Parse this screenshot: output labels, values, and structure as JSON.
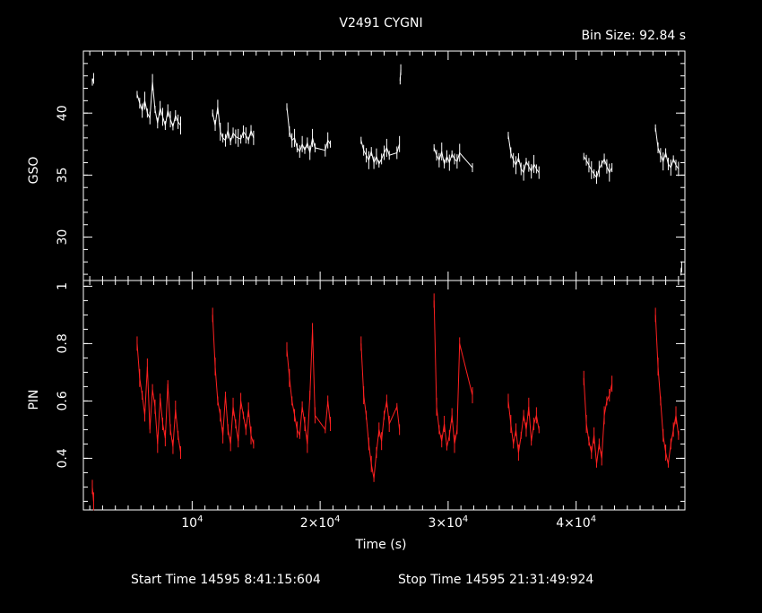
{
  "title": "V2491 CYGNI",
  "bin_label": "Bin Size: 92.84 s",
  "footer": {
    "start": "Start Time 14595  8:41:15:604",
    "stop": "Stop Time 14595 21:31:49:924"
  },
  "colors": {
    "background": "#000000",
    "gso": "#ffffff",
    "pin": "#ff2020",
    "axes": "#ffffff"
  },
  "chart_data": [
    {
      "type": "line",
      "ylabel": "GSO",
      "xlim": [
        1500,
        48500
      ],
      "ylim": [
        26.5,
        45
      ],
      "yticks": [
        30,
        35,
        40
      ],
      "grid": false,
      "series": [
        {
          "segments": [
            {
              "x": [
                2200,
                2300
              ],
              "y": [
                42.5,
                42.8
              ]
            },
            {
              "x": [
                5700,
                5900,
                6100,
                6300,
                6500,
                6700,
                6900,
                7100,
                7300,
                7500,
                7700,
                7900,
                8100,
                8300,
                8500,
                8700,
                8900,
                9100
              ],
              "y": [
                41.5,
                40.8,
                40.2,
                41.0,
                40.0,
                39.6,
                42.5,
                40.3,
                39.2,
                40.4,
                39.7,
                39.0,
                40.2,
                39.5,
                38.9,
                39.8,
                39.3,
                39.0
              ]
            },
            {
              "x": [
                11600,
                11800,
                12000,
                12200,
                12400,
                12600,
                12800,
                13000,
                13200,
                13400,
                13600,
                13800,
                14000,
                14200,
                14400,
                14600,
                14800
              ],
              "y": [
                40.0,
                39.0,
                40.5,
                38.5,
                38.0,
                37.8,
                38.6,
                37.7,
                38.4,
                38.1,
                38.0,
                37.9,
                38.5,
                38.2,
                37.8,
                38.6,
                38.0
              ]
            },
            {
              "x": [
                17400,
                17600,
                17800,
                18000,
                18200,
                18400,
                18600,
                18800,
                19000,
                19200,
                19400,
                19600,
                20400,
                20600,
                20800
              ],
              "y": [
                40.5,
                38.5,
                37.8,
                38.0,
                37.2,
                36.9,
                37.5,
                37.0,
                37.6,
                36.8,
                38.0,
                37.2,
                37.0,
                37.8,
                37.5
              ]
            },
            {
              "x": [
                23200,
                23400,
                23600,
                23800,
                24000,
                24200,
                24400,
                24600,
                24800,
                25000,
                25200,
                25400,
                26000,
                26200
              ],
              "y": [
                37.8,
                37.0,
                36.6,
                36.2,
                36.9,
                36.0,
                36.5,
                35.9,
                36.3,
                36.8,
                37.2,
                36.6,
                36.8,
                37.5
              ]
            },
            {
              "x": [
                26250,
                26300
              ],
              "y": [
                42.6,
                43.5
              ]
            },
            {
              "x": [
                28900,
                29100,
                29300,
                29500,
                29700,
                29900,
                30100,
                30300,
                30500,
                30700,
                30900,
                31900
              ],
              "y": [
                37.2,
                36.6,
                36.2,
                36.9,
                35.9,
                36.5,
                36.0,
                36.7,
                36.3,
                36.1,
                36.8,
                35.6
              ]
            },
            {
              "x": [
                34700,
                34900,
                35100,
                35300,
                35500,
                35700,
                35900,
                36100,
                36300,
                36500,
                36700,
                36900,
                37100
              ],
              "y": [
                38.2,
                36.8,
                36.2,
                35.8,
                36.4,
                35.5,
                35.2,
                36.1,
                35.7,
                35.3,
                35.9,
                35.5,
                35.2
              ]
            },
            {
              "x": [
                40600,
                40800,
                41000,
                41200,
                41400,
                41600,
                41800,
                42000,
                42200,
                42400,
                42600,
                42800
              ],
              "y": [
                36.5,
                36.2,
                35.8,
                35.4,
                35.1,
                34.8,
                35.5,
                35.9,
                36.3,
                35.7,
                35.2,
                35.6
              ]
            },
            {
              "x": [
                46200,
                46400,
                46600,
                46800,
                47000,
                47200,
                47400,
                47600,
                47800,
                48000
              ],
              "y": [
                38.8,
                37.2,
                36.6,
                36.1,
                36.8,
                35.9,
                35.6,
                36.3,
                35.8,
                35.5
              ]
            },
            {
              "x": [
                48200,
                48250
              ],
              "y": [
                27.2,
                27.6
              ]
            }
          ]
        }
      ]
    },
    {
      "type": "line",
      "ylabel": "PIN",
      "xlabel": "Time (s)",
      "xlim": [
        1500,
        48500
      ],
      "ylim": [
        0.22,
        1.02
      ],
      "yticks": [
        0.4,
        0.6,
        0.8,
        1
      ],
      "xticks": [
        10000,
        20000,
        30000,
        40000
      ],
      "xtick_labels": [
        "10^4",
        "2×10^4",
        "3×10^4",
        "4×10^4"
      ],
      "grid": false,
      "series": [
        {
          "segments": [
            {
              "x": [
                2200,
                2300
              ],
              "y": [
                0.3,
                0.25
              ]
            },
            {
              "x": [
                5700,
                5900,
                6100,
                6300,
                6500,
                6700,
                6900,
                7100,
                7300,
                7500,
                7700,
                7900,
                8100,
                8300,
                8500,
                8700,
                8900,
                9100
              ],
              "y": [
                0.8,
                0.68,
                0.62,
                0.55,
                0.72,
                0.5,
                0.64,
                0.58,
                0.45,
                0.61,
                0.52,
                0.47,
                0.66,
                0.5,
                0.44,
                0.57,
                0.48,
                0.42
              ]
            },
            {
              "x": [
                11600,
                11800,
                12000,
                12200,
                12400,
                12600,
                12800,
                13000,
                13200,
                13400,
                13600,
                13800,
                14000,
                14200,
                14400,
                14600,
                14800
              ],
              "y": [
                0.9,
                0.72,
                0.6,
                0.55,
                0.48,
                0.62,
                0.5,
                0.45,
                0.58,
                0.52,
                0.46,
                0.6,
                0.55,
                0.5,
                0.57,
                0.48,
                0.45
              ]
            },
            {
              "x": [
                17400,
                17600,
                17800,
                18000,
                18200,
                18400,
                18600,
                18800,
                19000,
                19200,
                19400,
                19600,
                20400,
                20600,
                20800
              ],
              "y": [
                0.78,
                0.68,
                0.6,
                0.55,
                0.5,
                0.48,
                0.58,
                0.52,
                0.45,
                0.62,
                0.85,
                0.55,
                0.5,
                0.6,
                0.52
              ]
            },
            {
              "x": [
                23200,
                23400,
                23600,
                23800,
                24000,
                24200,
                24400,
                24600,
                24800,
                25000,
                25200,
                25400,
                26000,
                26200
              ],
              "y": [
                0.8,
                0.62,
                0.55,
                0.45,
                0.38,
                0.33,
                0.42,
                0.5,
                0.46,
                0.55,
                0.6,
                0.52,
                0.58,
                0.5
              ]
            },
            {
              "x": [
                28900,
                29100,
                29300,
                29500,
                29700,
                29900,
                30100,
                30300,
                30500,
                30700,
                30900,
                31900
              ],
              "y": [
                0.95,
                0.58,
                0.5,
                0.46,
                0.52,
                0.44,
                0.48,
                0.55,
                0.45,
                0.5,
                0.8,
                0.62
              ]
            },
            {
              "x": [
                34700,
                34900,
                35100,
                35300,
                35500,
                35700,
                35900,
                36100,
                36300,
                36500,
                36700,
                36900,
                37100
              ],
              "y": [
                0.6,
                0.52,
                0.45,
                0.5,
                0.42,
                0.48,
                0.55,
                0.5,
                0.58,
                0.46,
                0.52,
                0.55,
                0.5
              ]
            },
            {
              "x": [
                40600,
                40800,
                41000,
                41200,
                41400,
                41600,
                41800,
                42000,
                42200,
                42400,
                42600,
                42800
              ],
              "y": [
                0.68,
                0.52,
                0.46,
                0.42,
                0.48,
                0.38,
                0.45,
                0.4,
                0.55,
                0.6,
                0.62,
                0.66
              ]
            },
            {
              "x": [
                46200,
                46400,
                46600,
                46800,
                47000,
                47200,
                47400,
                47600,
                47800,
                48000
              ],
              "y": [
                0.9,
                0.72,
                0.6,
                0.48,
                0.42,
                0.38,
                0.45,
                0.5,
                0.55,
                0.48
              ]
            }
          ]
        }
      ]
    }
  ]
}
